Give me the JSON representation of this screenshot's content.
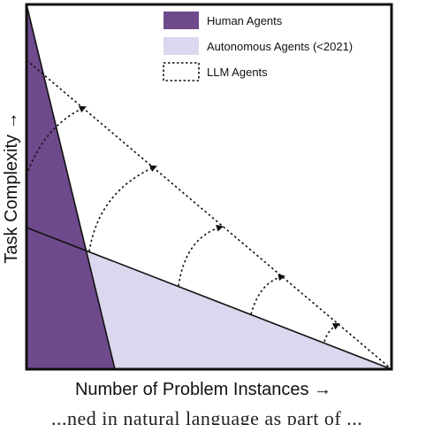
{
  "diagram": {
    "x_axis_label": "Number of Problem Instances →",
    "y_axis_label": "Task Complexity →",
    "legend": [
      {
        "label": "Human Agents",
        "style": "filled",
        "color": "#6e4a8c"
      },
      {
        "label": "Autonomous Agents (<2021)",
        "style": "filled",
        "color": "#dcd6ee"
      },
      {
        "label": "LLM Agents",
        "style": "dotted-outline",
        "color": "#111111"
      }
    ],
    "colors": {
      "human": "#6e4a8c",
      "autonomous": "#dcd6ee",
      "frame": "#111111"
    }
  },
  "caption": "...ned in natural language as part of ..."
}
